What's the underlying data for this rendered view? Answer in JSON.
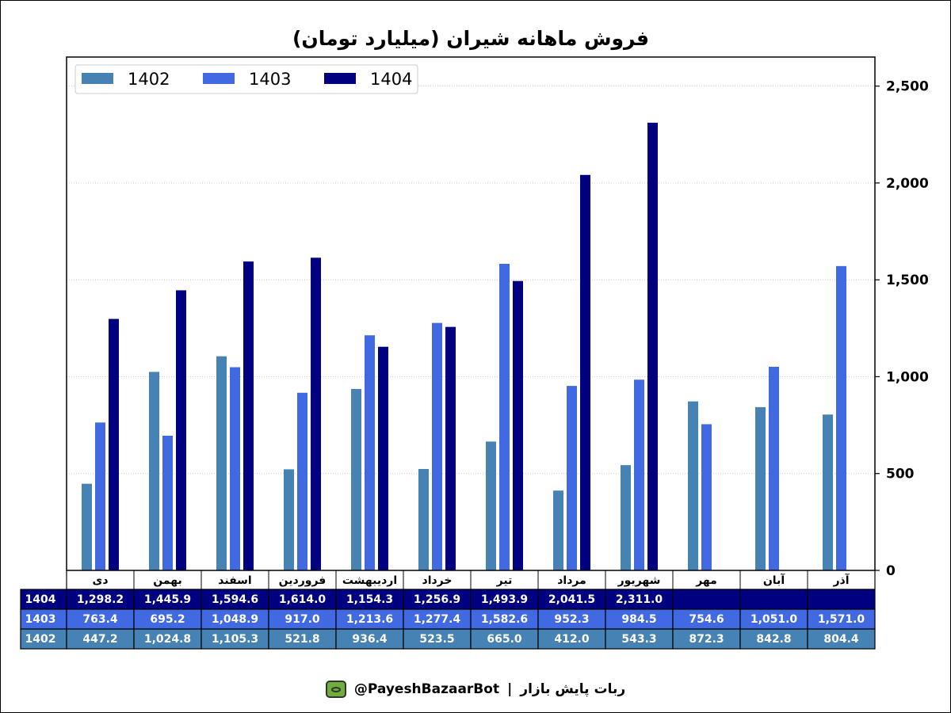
{
  "chart_data": {
    "type": "bar",
    "title": "فروش ماهانه شیران (میلیارد تومان)",
    "categories": [
      "دی",
      "بهمن",
      "اسفند",
      "فروردین",
      "اردیبهشت",
      "خرداد",
      "تیر",
      "مرداد",
      "شهریور",
      "مهر",
      "آبان",
      "آذر"
    ],
    "series": [
      {
        "name": "1402",
        "color": "#4682b4",
        "values": [
          447.2,
          1024.8,
          1105.3,
          521.8,
          936.4,
          523.5,
          665.0,
          412.0,
          543.3,
          872.3,
          842.8,
          804.4
        ],
        "labels": [
          "447.2",
          "1,024.8",
          "1,105.3",
          "521.8",
          "936.4",
          "523.5",
          "665.0",
          "412.0",
          "543.3",
          "872.3",
          "842.8",
          "804.4"
        ]
      },
      {
        "name": "1403",
        "color": "#4169e1",
        "values": [
          763.4,
          695.2,
          1048.9,
          917.0,
          1213.6,
          1277.4,
          1582.6,
          952.3,
          984.5,
          754.6,
          1051.0,
          1571.0
        ],
        "labels": [
          "763.4",
          "695.2",
          "1,048.9",
          "917.0",
          "1,213.6",
          "1,277.4",
          "1,582.6",
          "952.3",
          "984.5",
          "754.6",
          "1,051.0",
          "1,571.0"
        ]
      },
      {
        "name": "1404",
        "color": "#000080",
        "values": [
          1298.2,
          1445.9,
          1594.6,
          1614.0,
          1154.3,
          1256.9,
          1493.9,
          2041.5,
          2311.0,
          null,
          null,
          null
        ],
        "labels": [
          "1,298.2",
          "1,445.9",
          "1,594.6",
          "1,614.0",
          "1,154.3",
          "1,256.9",
          "1,493.9",
          "2,041.5",
          "2,311.0",
          "",
          "",
          ""
        ]
      }
    ],
    "y_axis_position": "right",
    "ylim": [
      0,
      2650
    ],
    "yticks": [
      0,
      500,
      1000,
      1500,
      2000,
      2500
    ],
    "ytick_labels": [
      "0",
      "500",
      "1,000",
      "1,500",
      "2,000",
      "2,500"
    ],
    "grid": true,
    "legend_position": "top-left",
    "table_row_order": [
      "1404",
      "1403",
      "1402"
    ]
  },
  "footer": {
    "bot_name": "ربات پایش بازار",
    "separator": "|",
    "handle": "@PayeshBazaarBot",
    "icon": "tv-bot-icon"
  }
}
